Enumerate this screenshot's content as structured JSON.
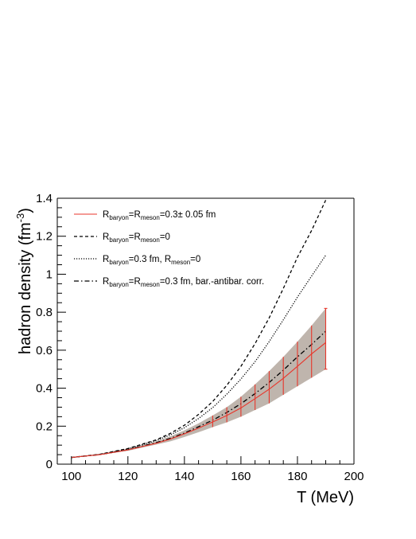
{
  "chart_data": {
    "type": "line",
    "xlabel": "T (MeV)",
    "ylabel_main": "hadron density (fm",
    "ylabel_sup": "-3",
    "ylabel_close": ")",
    "xlim": [
      95,
      200
    ],
    "ylim": [
      0,
      1.4
    ],
    "x_ticks": [
      100,
      120,
      140,
      160,
      180,
      200
    ],
    "x_tick_labels": [
      "100",
      "120",
      "140",
      "160",
      "180",
      "200"
    ],
    "y_ticks": [
      0,
      0.2,
      0.4,
      0.6,
      0.8,
      1,
      1.2,
      1.4
    ],
    "y_tick_labels": [
      "0",
      "0.2",
      "0.4",
      "0.6",
      "0.8",
      "1",
      "1.2",
      "1.4"
    ],
    "grid": false,
    "legend_position": "top-left",
    "x": [
      100,
      110,
      120,
      130,
      135,
      140,
      145,
      150,
      155,
      160,
      165,
      170,
      175,
      180,
      185,
      190
    ],
    "series": [
      {
        "style": "solid-red-with-band",
        "color": "#e8362b",
        "legend": [
          {
            "t": "R"
          },
          {
            "t": "baryon",
            "sub": true
          },
          {
            "t": "=R"
          },
          {
            "t": "meson",
            "sub": true
          },
          {
            "t": "=0.3± 0.05 fm"
          }
        ],
        "values": [
          0.035,
          0.05,
          0.075,
          0.11,
          0.132,
          0.16,
          0.19,
          0.222,
          0.256,
          0.296,
          0.345,
          0.395,
          0.452,
          0.515,
          0.58,
          0.64
        ],
        "upper": [
          0.036,
          0.054,
          0.08,
          0.12,
          0.146,
          0.178,
          0.215,
          0.256,
          0.3,
          0.355,
          0.42,
          0.49,
          0.565,
          0.645,
          0.73,
          0.82
        ],
        "lower": [
          0.034,
          0.048,
          0.07,
          0.103,
          0.12,
          0.143,
          0.168,
          0.195,
          0.22,
          0.25,
          0.285,
          0.32,
          0.365,
          0.41,
          0.455,
          0.5
        ],
        "error_bars_x": [
          150,
          155,
          160,
          165,
          170,
          175,
          180,
          185,
          190
        ]
      },
      {
        "style": "dashed",
        "color": "#000000",
        "legend": [
          {
            "t": "R"
          },
          {
            "t": "baryon",
            "sub": true
          },
          {
            "t": "=R"
          },
          {
            "t": "meson",
            "sub": true
          },
          {
            "t": "=0"
          }
        ],
        "values": [
          0.035,
          0.052,
          0.082,
          0.128,
          0.162,
          0.205,
          0.262,
          0.33,
          0.415,
          0.515,
          0.635,
          0.77,
          0.925,
          1.09,
          1.23,
          1.39
        ]
      },
      {
        "style": "dotted",
        "color": "#000000",
        "legend": [
          {
            "t": "R"
          },
          {
            "t": "baryon",
            "sub": true
          },
          {
            "t": "=0.3 fm, R"
          },
          {
            "t": "meson",
            "sub": true
          },
          {
            "t": "=0"
          }
        ],
        "values": [
          0.035,
          0.051,
          0.08,
          0.124,
          0.154,
          0.192,
          0.24,
          0.298,
          0.368,
          0.448,
          0.54,
          0.645,
          0.76,
          0.88,
          0.99,
          1.1
        ]
      },
      {
        "style": "dash-dot",
        "color": "#000000",
        "legend": [
          {
            "t": "R"
          },
          {
            "t": "baryon",
            "sub": true
          },
          {
            "t": "=R"
          },
          {
            "t": "meson",
            "sub": true
          },
          {
            "t": "=0.3 fm, bar.-antibar. corr."
          }
        ],
        "values": [
          0.035,
          0.05,
          0.076,
          0.113,
          0.136,
          0.164,
          0.197,
          0.232,
          0.272,
          0.318,
          0.372,
          0.43,
          0.495,
          0.565,
          0.63,
          0.7
        ]
      }
    ]
  }
}
